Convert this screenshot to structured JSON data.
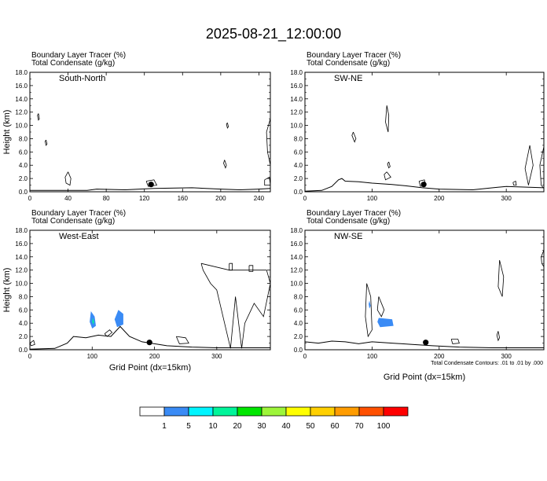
{
  "title": "2025-08-21_12:00:00",
  "footnote": "Total Condensate Contours: .01 to .01 by .000",
  "colorbar": {
    "colors": [
      "#ffffff",
      "#3a8bf5",
      "#00f5ff",
      "#00f59a",
      "#00e600",
      "#9df53a",
      "#ffff00",
      "#ffd000",
      "#ff9c00",
      "#ff5000",
      "#ff0000"
    ],
    "labels": [
      "1",
      "5",
      "10",
      "20",
      "30",
      "40",
      "50",
      "60",
      "70",
      "100"
    ]
  },
  "chart_data": [
    {
      "type": "contour",
      "panel_label": "South-North",
      "header": [
        "Boundary Layer Tracer   (%)",
        "Total Condensate   (g/kg)"
      ],
      "ylabel": "Height (km)",
      "xlabel": "",
      "xlim": [
        0,
        252
      ],
      "ylim": [
        0,
        18
      ],
      "xticks": [
        0,
        40,
        80,
        120,
        160,
        200,
        240
      ],
      "yticks": [
        0,
        2,
        4,
        6,
        8,
        10,
        12,
        14,
        16,
        18
      ],
      "ytick_labels": [
        "0.0",
        "2.0",
        "4.0",
        "6.0",
        "8.0",
        "10.0",
        "12.0",
        "14.0",
        "16.0",
        "18.0"
      ],
      "terrain": [
        [
          0,
          0.2
        ],
        [
          60,
          0.2
        ],
        [
          70,
          0.4
        ],
        [
          100,
          0.3
        ],
        [
          130,
          0.5
        ],
        [
          170,
          0.6
        ],
        [
          200,
          0.4
        ],
        [
          220,
          0.3
        ],
        [
          240,
          0.4
        ],
        [
          252,
          0.5
        ]
      ],
      "marker": [
        127,
        1.1
      ],
      "contours": [
        [
          [
            9,
            11.8
          ],
          [
            10,
            11
          ],
          [
            9,
            10.8
          ],
          [
            8,
            11.5
          ],
          [
            9,
            11.8
          ]
        ],
        [
          [
            17,
            7.8
          ],
          [
            18,
            7.2
          ],
          [
            17,
            7.0
          ],
          [
            16,
            7.6
          ],
          [
            17,
            7.8
          ]
        ],
        [
          [
            40,
            3.0
          ],
          [
            43,
            2.0
          ],
          [
            42,
            1.0
          ],
          [
            38,
            1.3
          ],
          [
            37,
            2.2
          ],
          [
            40,
            3.0
          ]
        ],
        [
          [
            207,
            10.4
          ],
          [
            208,
            9.8
          ],
          [
            207,
            9.6
          ],
          [
            206,
            10.2
          ],
          [
            207,
            10.4
          ]
        ],
        [
          [
            204,
            4.8
          ],
          [
            206,
            4.0
          ],
          [
            205,
            3.6
          ],
          [
            203,
            4.3
          ],
          [
            204,
            4.8
          ]
        ],
        [
          [
            252,
            11
          ],
          [
            248,
            9
          ],
          [
            249,
            6
          ],
          [
            252,
            4
          ]
        ],
        [
          [
            122,
            1.6
          ],
          [
            130,
            1.8
          ],
          [
            133,
            1.0
          ],
          [
            124,
            0.8
          ],
          [
            122,
            1.6
          ]
        ],
        [
          [
            246,
            1.8
          ],
          [
            251,
            2.2
          ],
          [
            252,
            1.0
          ],
          [
            246,
            1.0
          ],
          [
            246,
            1.8
          ]
        ]
      ],
      "filled": []
    },
    {
      "type": "contour",
      "panel_label": "SW-NE",
      "header": [
        "Boundary Layer Tracer   (%)",
        "Total Condensate   (g/kg)"
      ],
      "ylabel": "",
      "xlabel": "",
      "xlim": [
        0,
        356
      ],
      "ylim": [
        0,
        18
      ],
      "xticks": [
        0,
        100,
        200,
        300
      ],
      "yticks": [
        0,
        2,
        4,
        6,
        8,
        10,
        12,
        14,
        16,
        18
      ],
      "ytick_labels": [
        "0.0",
        "2.0",
        "4.0",
        "6.0",
        "8.0",
        "10.0",
        "12.0",
        "14.0",
        "16.0",
        "18.0"
      ],
      "terrain": [
        [
          0,
          0.1
        ],
        [
          25,
          0.2
        ],
        [
          40,
          0.8
        ],
        [
          50,
          1.8
        ],
        [
          55,
          2.0
        ],
        [
          60,
          1.6
        ],
        [
          80,
          1.5
        ],
        [
          100,
          1.3
        ],
        [
          130,
          1.1
        ],
        [
          150,
          0.9
        ],
        [
          175,
          0.6
        ],
        [
          200,
          0.4
        ],
        [
          250,
          0.3
        ],
        [
          280,
          0.6
        ],
        [
          300,
          0.8
        ],
        [
          330,
          0.7
        ],
        [
          356,
          0.6
        ]
      ],
      "marker": [
        177,
        1.1
      ],
      "contours": [
        [
          [
            72,
            9.0
          ],
          [
            76,
            8.0
          ],
          [
            74,
            7.5
          ],
          [
            70,
            8.5
          ],
          [
            72,
            9.0
          ]
        ],
        [
          [
            122,
            13.0
          ],
          [
            125,
            11.5
          ],
          [
            124,
            9.0
          ],
          [
            120,
            10.5
          ],
          [
            122,
            13.0
          ]
        ],
        [
          [
            125,
            4.5
          ],
          [
            127,
            3.8
          ],
          [
            125,
            3.6
          ],
          [
            123,
            4.2
          ],
          [
            125,
            4.5
          ]
        ],
        [
          [
            122,
            3.0
          ],
          [
            128,
            2.2
          ],
          [
            120,
            1.8
          ],
          [
            118,
            2.6
          ],
          [
            122,
            3.0
          ]
        ],
        [
          [
            170,
            1.6
          ],
          [
            178,
            1.8
          ],
          [
            180,
            1.0
          ],
          [
            172,
            0.8
          ],
          [
            170,
            1.6
          ]
        ],
        [
          [
            335,
            7.0
          ],
          [
            340,
            4.0
          ],
          [
            333,
            1.0
          ],
          [
            328,
            3.5
          ],
          [
            335,
            7.0
          ]
        ],
        [
          [
            356,
            6.8
          ],
          [
            350,
            4.0
          ],
          [
            352,
            1.0
          ],
          [
            356,
            0.5
          ]
        ],
        [
          [
            310,
            1.4
          ],
          [
            314,
            1.6
          ],
          [
            315,
            1.0
          ],
          [
            311,
            1.0
          ],
          [
            310,
            1.4
          ]
        ]
      ],
      "filled": []
    },
    {
      "type": "contour",
      "panel_label": "West-East",
      "header": [
        "Boundary Layer Tracer   (%)",
        "Total Condensate   (g/kg)"
      ],
      "ylabel": "Height (km)",
      "xlabel": "Grid Point (dx=15km)",
      "xlim": [
        0,
        386
      ],
      "ylim": [
        0,
        18
      ],
      "xticks": [
        0,
        100,
        200,
        300
      ],
      "yticks": [
        0,
        2,
        4,
        6,
        8,
        10,
        12,
        14,
        16,
        18
      ],
      "ytick_labels": [
        "0.0",
        "2.0",
        "4.0",
        "6.0",
        "8.0",
        "10.0",
        "12.0",
        "14.0",
        "16.0",
        "18.0"
      ],
      "terrain": [
        [
          0,
          0.1
        ],
        [
          40,
          0.2
        ],
        [
          60,
          1.0
        ],
        [
          70,
          2.0
        ],
        [
          90,
          1.8
        ],
        [
          110,
          2.2
        ],
        [
          130,
          2.0
        ],
        [
          145,
          3.5
        ],
        [
          160,
          2.0
        ],
        [
          180,
          1.2
        ],
        [
          220,
          0.6
        ],
        [
          260,
          0.4
        ],
        [
          300,
          0.3
        ],
        [
          340,
          0.3
        ],
        [
          386,
          0.3
        ]
      ],
      "marker": [
        192,
        1.1
      ],
      "contours": [
        [
          [
            120,
            2.4
          ],
          [
            128,
            3.0
          ],
          [
            132,
            2.6
          ],
          [
            124,
            2.0
          ],
          [
            120,
            2.4
          ]
        ],
        [
          [
            235,
            2.0
          ],
          [
            250,
            1.8
          ],
          [
            255,
            1.0
          ],
          [
            240,
            0.9
          ],
          [
            235,
            2.0
          ]
        ],
        [
          [
            275,
            13
          ],
          [
            320,
            12
          ],
          [
            380,
            12
          ],
          [
            386,
            10
          ],
          [
            375,
            5
          ],
          [
            360,
            7
          ],
          [
            345,
            4
          ],
          [
            340,
            0.2
          ],
          [
            330,
            8
          ],
          [
            322,
            0.2
          ],
          [
            300,
            9
          ],
          [
            290,
            10
          ],
          [
            278,
            12
          ],
          [
            275,
            13
          ]
        ],
        [
          [
            320,
            13
          ],
          [
            325,
            13
          ],
          [
            325,
            12
          ],
          [
            320,
            12
          ],
          [
            320,
            13
          ]
        ],
        [
          [
            352,
            12.7
          ],
          [
            358,
            12.7
          ],
          [
            358,
            11.8
          ],
          [
            352,
            11.8
          ],
          [
            352,
            12.7
          ]
        ],
        [
          [
            0,
            1
          ],
          [
            6,
            1.4
          ],
          [
            8,
            0.8
          ],
          [
            2,
            0.6
          ],
          [
            0,
            1
          ]
        ]
      ],
      "filled": [
        {
          "level": 5,
          "poly": [
            [
              98,
              5.8
            ],
            [
              104,
              5.0
            ],
            [
              106,
              3.6
            ],
            [
              100,
              3.2
            ],
            [
              96,
              4.2
            ],
            [
              98,
              5.8
            ]
          ]
        },
        {
          "level": 5,
          "poly": [
            [
              142,
              6.0
            ],
            [
              150,
              5.4
            ],
            [
              150,
              3.8
            ],
            [
              140,
              3.4
            ],
            [
              136,
              4.6
            ],
            [
              142,
              6.0
            ]
          ]
        },
        {
          "level": 20,
          "poly": [
            [
              101,
              4.8
            ],
            [
              103,
              4.2
            ],
            [
              102,
              3.8
            ],
            [
              100,
              4.2
            ],
            [
              101,
              4.8
            ]
          ]
        }
      ]
    },
    {
      "type": "contour",
      "panel_label": "NW-SE",
      "header": [
        "Boundary Layer Tracer   (%)",
        "Total Condensate   (g/kg)"
      ],
      "ylabel": "",
      "xlabel": "Grid Point (dx=15km)",
      "xlim": [
        0,
        356
      ],
      "ylim": [
        0,
        18
      ],
      "xticks": [
        0,
        100,
        200,
        300
      ],
      "yticks": [
        0,
        2,
        4,
        6,
        8,
        10,
        12,
        14,
        16,
        18
      ],
      "ytick_labels": [
        "0.0",
        "2.0",
        "4.0",
        "6.0",
        "8.0",
        "10.0",
        "12.0",
        "14.0",
        "16.0",
        "18.0"
      ],
      "terrain": [
        [
          0,
          1.2
        ],
        [
          20,
          1.0
        ],
        [
          40,
          1.3
        ],
        [
          60,
          1.2
        ],
        [
          80,
          0.9
        ],
        [
          100,
          1.2
        ],
        [
          130,
          1.0
        ],
        [
          160,
          0.8
        ],
        [
          190,
          0.6
        ],
        [
          230,
          0.4
        ],
        [
          280,
          0.3
        ],
        [
          356,
          0.3
        ]
      ],
      "marker": [
        180,
        1.1
      ],
      "contours": [
        [
          [
            92,
            10.0
          ],
          [
            98,
            8.0
          ],
          [
            100,
            3.0
          ],
          [
            94,
            2.0
          ],
          [
            90,
            5.0
          ],
          [
            92,
            10.0
          ]
        ],
        [
          [
            110,
            8.0
          ],
          [
            118,
            6.0
          ],
          [
            114,
            5.0
          ],
          [
            108,
            6.0
          ],
          [
            110,
            8.0
          ]
        ],
        [
          [
            290,
            13.5
          ],
          [
            296,
            11.0
          ],
          [
            294,
            8.0
          ],
          [
            288,
            9.5
          ],
          [
            290,
            13.5
          ]
        ],
        [
          [
            288,
            2.8
          ],
          [
            290,
            1.8
          ],
          [
            288,
            1.4
          ],
          [
            286,
            2.2
          ],
          [
            288,
            2.8
          ]
        ],
        [
          [
            218,
            1.6
          ],
          [
            228,
            1.6
          ],
          [
            230,
            1.0
          ],
          [
            220,
            0.9
          ],
          [
            218,
            1.6
          ]
        ],
        [
          [
            356,
            15
          ],
          [
            352,
            14
          ],
          [
            353,
            13
          ],
          [
            356,
            12.5
          ]
        ]
      ],
      "filled": [
        {
          "level": 5,
          "poly": [
            [
              110,
              4.8
            ],
            [
              130,
              4.6
            ],
            [
              132,
              3.6
            ],
            [
              112,
              3.4
            ],
            [
              108,
              4.2
            ],
            [
              110,
              4.8
            ]
          ]
        },
        {
          "level": 5,
          "poly": [
            [
              96,
              7.4
            ],
            [
              98,
              6.6
            ],
            [
              96,
              6.2
            ],
            [
              95,
              6.9
            ],
            [
              96,
              7.4
            ]
          ]
        }
      ]
    }
  ]
}
